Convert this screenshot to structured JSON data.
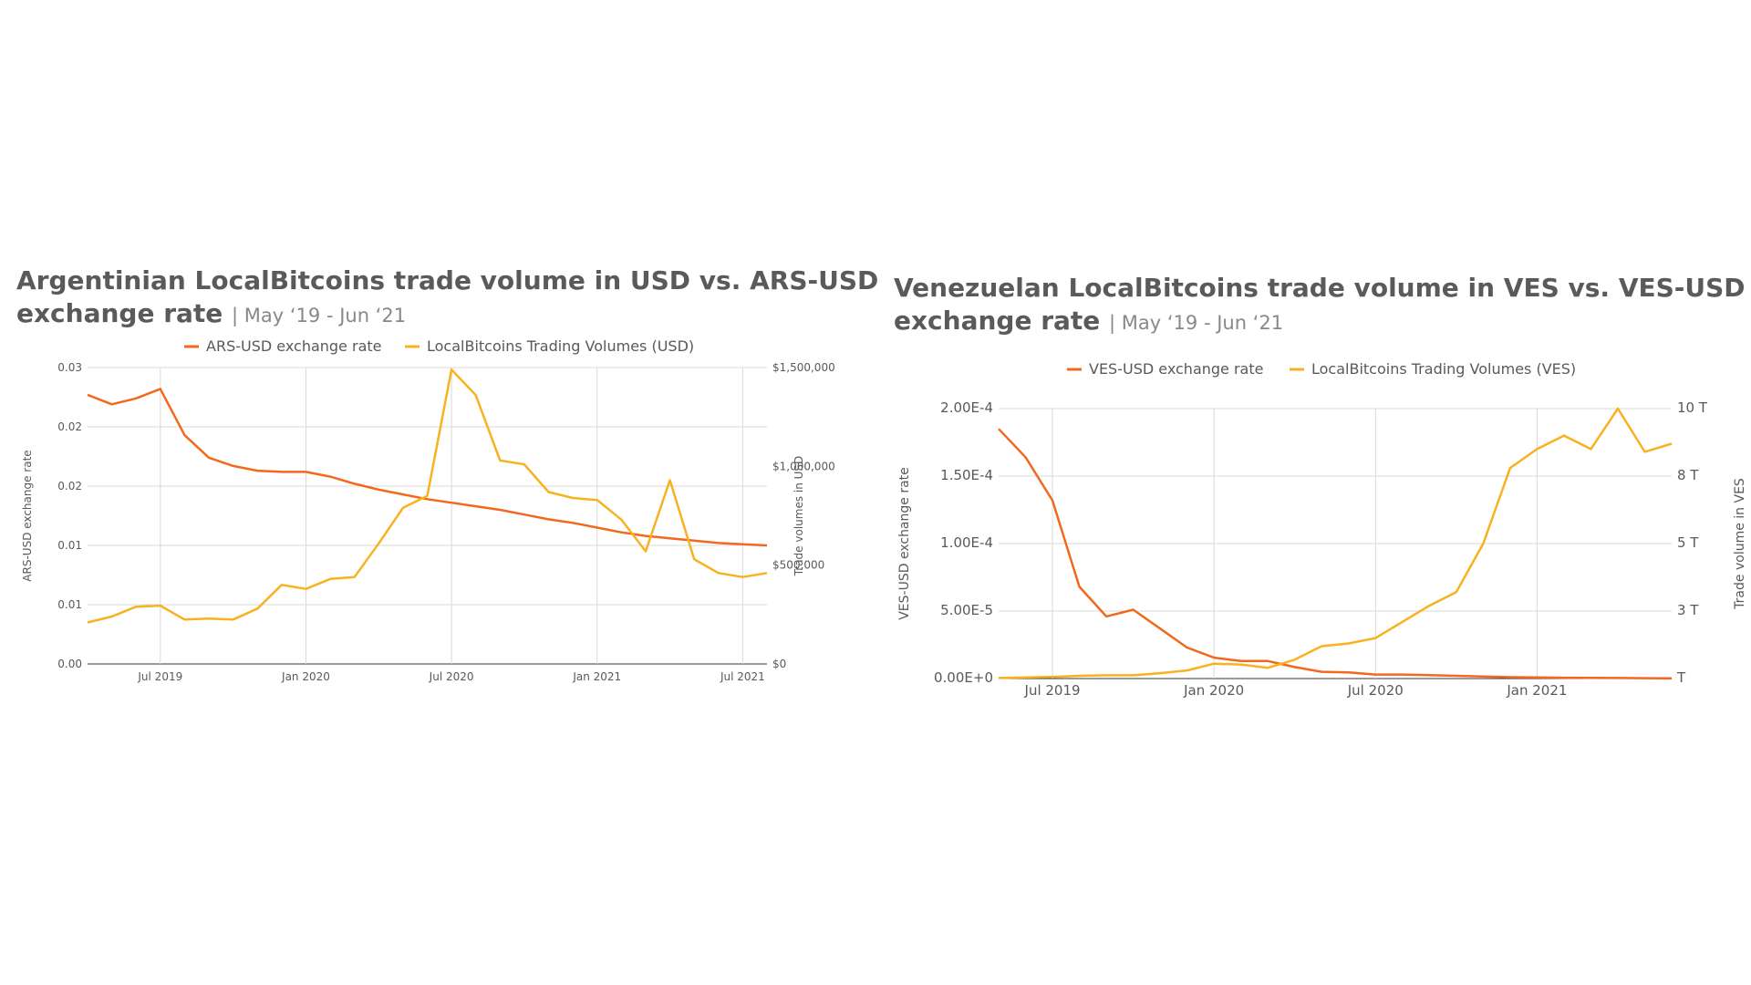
{
  "colors": {
    "exchange": "#F2691E",
    "volume": "#F9B21F",
    "grid": "#D9D9D9",
    "axis": "#333333",
    "text": "#595959"
  },
  "charts": [
    {
      "id": "ars",
      "title_line1": "Argentinian LocalBitcoins trade volume in USD vs. ARS-USD",
      "title_line2": "exchange rate",
      "title_range": "| May ‘19 - Jun ‘21",
      "legend": [
        "ARS-USD exchange rate",
        "LocalBitcoins Trading Volumes (USD)"
      ],
      "ylabel_left": "ARS-USD exchange rate",
      "ylabel_right": "Trade volumes in USD",
      "left_ticks": [
        "0.00",
        "0.01",
        "0.01",
        "0.02",
        "0.02",
        "0.03"
      ],
      "right_ticks": [
        "$0",
        "$500,000",
        "$1,000,000",
        "$1,500,000"
      ],
      "x_ticks": [
        "Jul 2019",
        "Jan 2020",
        "Jul 2020",
        "Jan 2021",
        "Jul 2021"
      ]
    },
    {
      "id": "ves",
      "title_line1": "Venezuelan LocalBitcoins trade volume in VES vs. VES-USD",
      "title_line2": "exchange rate",
      "title_range": "| May ‘19 - Jun ‘21",
      "legend": [
        "VES-USD exchange rate",
        "LocalBitcoins Trading Volumes (VES)"
      ],
      "ylabel_left": "VES-USD exchange rate",
      "ylabel_right": "Trade volume in VES",
      "left_ticks": [
        "0.00E+0",
        "5.00E-5",
        "1.00E-4",
        "1.50E-4",
        "2.00E-4"
      ],
      "right_ticks": [
        "T",
        "3 T",
        "5 T",
        "8 T",
        "10 T"
      ],
      "x_ticks": [
        "Jul 2019",
        "Jan 2020",
        "Jul 2020",
        "Jan 2021"
      ]
    }
  ],
  "chart_data": [
    {
      "type": "line",
      "x": [
        "2019-04",
        "2019-05",
        "2019-06",
        "2019-07",
        "2019-08",
        "2019-09",
        "2019-10",
        "2019-11",
        "2019-12",
        "2020-01",
        "2020-02",
        "2020-03",
        "2020-04",
        "2020-05",
        "2020-06",
        "2020-07",
        "2020-08",
        "2020-09",
        "2020-10",
        "2020-11",
        "2020-12",
        "2021-01",
        "2021-02",
        "2021-03",
        "2021-04",
        "2021-05",
        "2021-06",
        "2021-07",
        "2021-08"
      ],
      "ylim_left": [
        0,
        0.025
      ],
      "ylim_right": [
        0,
        1500000
      ],
      "series": [
        {
          "name": "ARS-USD exchange rate",
          "axis": "left",
          "values": [
            0.0227,
            0.0219,
            0.0224,
            0.0232,
            0.0193,
            0.0174,
            0.0167,
            0.0163,
            0.0162,
            0.0162,
            0.0158,
            0.0152,
            0.0147,
            0.0143,
            0.0139,
            0.0136,
            0.0133,
            0.013,
            0.0126,
            0.0122,
            0.0119,
            0.0115,
            0.0111,
            0.0108,
            0.0106,
            0.0104,
            0.0102,
            0.0101,
            0.01
          ]
        },
        {
          "name": "LocalBitcoins Trading Volumes (USD)",
          "axis": "right",
          "values": [
            210000,
            240000,
            290000,
            295000,
            225000,
            230000,
            225000,
            280000,
            400000,
            380000,
            430000,
            440000,
            610000,
            790000,
            850000,
            1490000,
            1360000,
            1030000,
            1010000,
            870000,
            840000,
            830000,
            730000,
            570000,
            930000,
            530000,
            460000,
            440000,
            460000
          ]
        }
      ]
    },
    {
      "type": "line",
      "x": [
        "2019-05",
        "2019-06",
        "2019-07",
        "2019-08",
        "2019-09",
        "2019-10",
        "2019-11",
        "2019-12",
        "2020-01",
        "2020-02",
        "2020-03",
        "2020-04",
        "2020-05",
        "2020-06",
        "2020-07",
        "2020-08",
        "2020-09",
        "2020-10",
        "2020-11",
        "2020-12",
        "2021-01",
        "2021-02",
        "2021-03",
        "2021-04",
        "2021-05",
        "2021-06"
      ],
      "ylim_left": [
        0,
        0.0002
      ],
      "ylim_right": [
        0,
        10
      ],
      "series": [
        {
          "name": "VES-USD exchange rate",
          "axis": "left",
          "values": [
            0.000185,
            0.000164,
            0.000132,
            6.8e-05,
            4.6e-05,
            5.1e-05,
            3.7e-05,
            2.3e-05,
            1.55e-05,
            1.3e-05,
            1.3e-05,
            8.5e-06,
            5e-06,
            4.5e-06,
            3e-06,
            3e-06,
            2.5e-06,
            2e-06,
            1.5e-06,
            1e-06,
            8e-07,
            6e-07,
            5e-07,
            4e-07,
            3e-07,
            2e-07
          ]
        },
        {
          "name": "LocalBitcoins Trading Volumes (VES)",
          "axis": "right",
          "values": [
            0.02,
            0.04,
            0.06,
            0.1,
            0.12,
            0.12,
            0.2,
            0.3,
            0.55,
            0.52,
            0.4,
            0.7,
            1.2,
            1.3,
            1.5,
            2.1,
            2.7,
            3.2,
            5.0,
            7.8,
            8.5,
            9.0,
            8.5,
            10.0,
            8.4,
            8.7
          ]
        }
      ]
    }
  ]
}
